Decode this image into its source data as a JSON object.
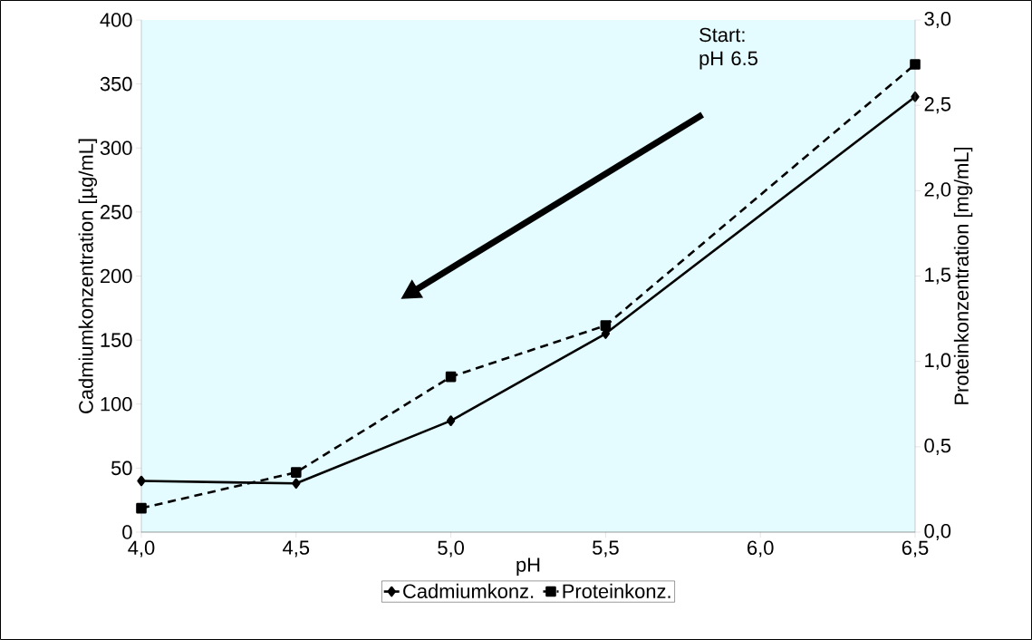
{
  "chart_data": {
    "type": "line",
    "xlabel": "pH",
    "ylabel": "Cadmiumkonzentration [µg/mL]",
    "y2label": "Proteinkonzentration [mg/mL]",
    "x": [
      4.0,
      4.5,
      5.0,
      5.5,
      6.5
    ],
    "series": [
      {
        "name": "Cadmiumkonz.",
        "color": "#000000",
        "values": [
          40,
          38,
          87,
          155,
          340
        ],
        "marker": "diamond",
        "line_style": "solid"
      },
      {
        "name": "Proteinkonz.",
        "color": "#000000",
        "values": [
          0.14,
          0.35,
          0.91,
          1.21,
          2.74
        ],
        "axis": "y2",
        "marker": "square",
        "line_style": "dashed"
      }
    ],
    "xlim": [
      4.0,
      6.5
    ],
    "xticks": [
      {
        "value": 4.0,
        "label": "4,0"
      },
      {
        "value": 4.5,
        "label": "4,5"
      },
      {
        "value": 5.0,
        "label": "5,0"
      },
      {
        "value": 5.5,
        "label": "5,5"
      },
      {
        "value": 6.0,
        "label": "6,0"
      },
      {
        "value": 6.5,
        "label": "6,5"
      }
    ],
    "ylim": [
      0,
      400
    ],
    "yticks": [
      0,
      50,
      100,
      150,
      200,
      250,
      300,
      350,
      400
    ],
    "y2lim": [
      0,
      3.0
    ],
    "y2ticks": [
      {
        "value": 0,
        "label": "0,0"
      },
      {
        "value": 0.5,
        "label": "0,5"
      },
      {
        "value": 1.0,
        "label": "1,0"
      },
      {
        "value": 1.5,
        "label": "1,5"
      },
      {
        "value": 2.0,
        "label": "2,0"
      },
      {
        "value": 2.5,
        "label": "2,5"
      },
      {
        "value": 3.0,
        "label": "3,0"
      }
    ],
    "legend": "bottom",
    "annotations": [
      "Start: pH 6.5"
    ]
  }
}
